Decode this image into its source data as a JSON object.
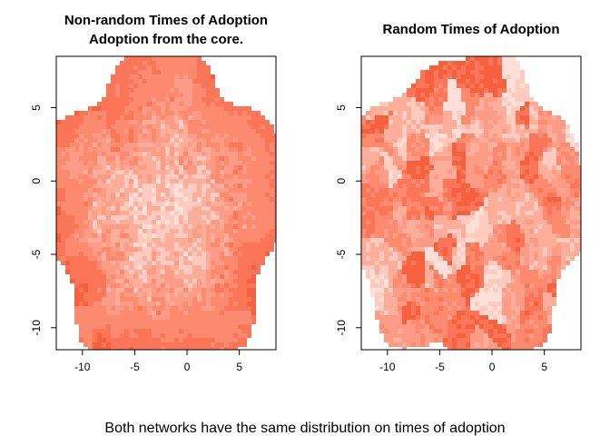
{
  "chart_data": [
    {
      "type": "heatmap",
      "title_lines": [
        "Non-random Times of Adoption",
        "Adoption from the core."
      ],
      "xlim": [
        -12.5,
        8.5
      ],
      "ylim": [
        -11.5,
        8.5
      ],
      "x_ticks": [
        -10,
        -5,
        0,
        5
      ],
      "y_ticks": [
        -10,
        -5,
        0,
        5
      ],
      "x_tick_labels": [
        "-10",
        "-5",
        "0",
        "5"
      ],
      "y_tick_labels": [
        "-10",
        "-5",
        "0",
        "5"
      ],
      "pattern": "core",
      "colors": [
        "#FFE0D9",
        "#FFCBBE",
        "#FCAE9B",
        "#FC9B86",
        "#FC8A6F",
        "#FB7558",
        "#F5613F"
      ]
    },
    {
      "type": "heatmap",
      "title_lines": [
        "Random Times of Adoption"
      ],
      "xlim": [
        -12.5,
        8.5
      ],
      "ylim": [
        -11.5,
        8.5
      ],
      "x_ticks": [
        -10,
        -5,
        0,
        5
      ],
      "y_ticks": [
        -10,
        -5,
        0,
        5
      ],
      "x_tick_labels": [
        "-10",
        "-5",
        "0",
        "5"
      ],
      "y_tick_labels": [
        "-10",
        "-5",
        "0",
        "5"
      ],
      "pattern": "random",
      "colors": [
        "#FFE0D9",
        "#FFCBBE",
        "#FCAE9B",
        "#FC9B86",
        "#FC8A6F",
        "#FB7558",
        "#F5613F"
      ]
    }
  ],
  "caption": "Both networks have the same distribution on times of adoption"
}
